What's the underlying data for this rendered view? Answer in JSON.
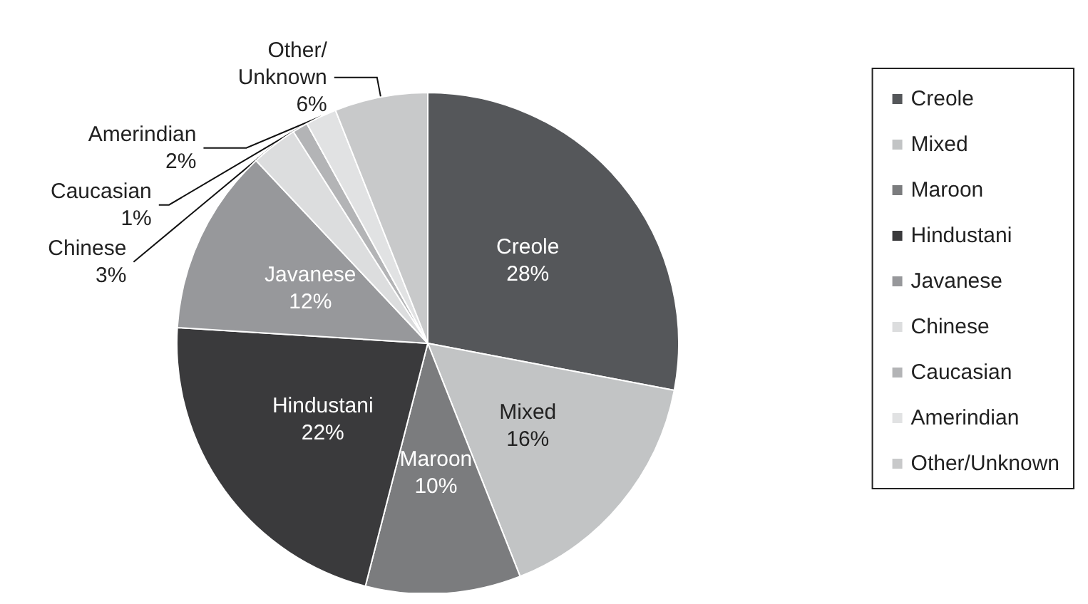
{
  "chart_data": {
    "type": "pie",
    "categories": [
      "Creole",
      "Mixed",
      "Maroon",
      "Hindustani",
      "Javanese",
      "Chinese",
      "Caucasian",
      "Amerindian",
      "Other/Unknown"
    ],
    "values": [
      28,
      16,
      10,
      22,
      12,
      3,
      1,
      2,
      6
    ],
    "value_labels": [
      "28%",
      "16%",
      "10%",
      "22%",
      "12%",
      "3%",
      "1%",
      "2%",
      "6%"
    ],
    "colors": [
      "#55575a",
      "#c2c4c5",
      "#7b7c7e",
      "#3a3a3c",
      "#97989b",
      "#dcddde",
      "#b3b4b6",
      "#e1e2e3",
      "#c8c9ca"
    ],
    "legend": "right"
  }
}
